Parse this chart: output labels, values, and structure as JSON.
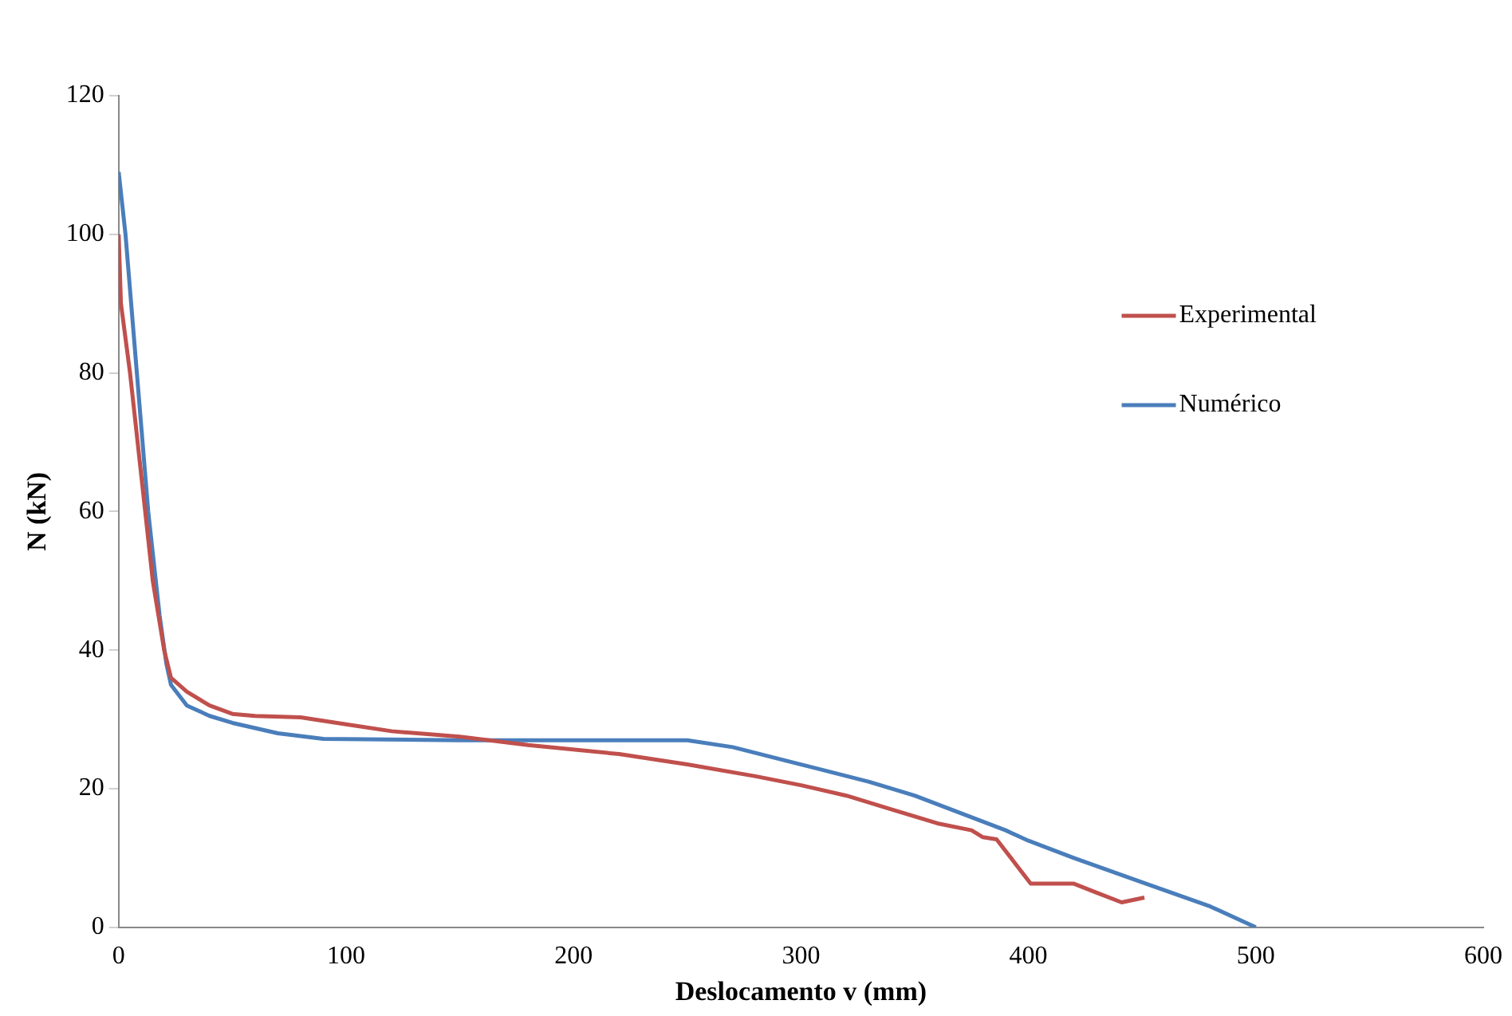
{
  "chart_data": {
    "type": "line",
    "xlabel": "Deslocamento v (mm)",
    "ylabel": "N (kN)",
    "xlim": [
      0,
      600
    ],
    "xticks": [
      0,
      100,
      200,
      300,
      400,
      500,
      600
    ],
    "ylim": [
      0,
      120
    ],
    "yticks": [
      0,
      20,
      40,
      60,
      80,
      100,
      120
    ],
    "grid": false,
    "legend": "right",
    "marker": "none",
    "line_style": "solid",
    "series": [
      {
        "name": "Experimental",
        "color": "#c0504d",
        "x": [
          0,
          1,
          5,
          10,
          15,
          20,
          23,
          30,
          40,
          50,
          60,
          80,
          100,
          120,
          150,
          180,
          220,
          250,
          280,
          300,
          320,
          340,
          360,
          375,
          380,
          386,
          401,
          420,
          430,
          441,
          451
        ],
        "values": [
          100,
          90,
          80,
          65,
          50,
          40,
          36,
          34,
          32,
          30.8,
          30.5,
          30.3,
          29.3,
          28.3,
          27.5,
          26.3,
          25,
          23.5,
          21.8,
          20.5,
          19,
          17,
          15,
          14,
          13,
          12.7,
          6.3,
          6.3,
          5,
          3.6,
          4.3
        ]
      },
      {
        "name": "Numérico",
        "color": "#4a7ebb",
        "x": [
          0,
          3,
          8,
          13,
          18,
          21,
          23,
          30,
          40,
          50,
          70,
          90,
          150,
          250,
          270,
          300,
          330,
          350,
          370,
          390,
          400,
          420,
          450,
          480,
          500
        ],
        "values": [
          109,
          100,
          80,
          60,
          45,
          38,
          35,
          32,
          30.5,
          29.5,
          28,
          27.2,
          27,
          27,
          26,
          23.5,
          21,
          19,
          16.5,
          14,
          12.5,
          10,
          6.5,
          3,
          0
        ]
      }
    ]
  }
}
